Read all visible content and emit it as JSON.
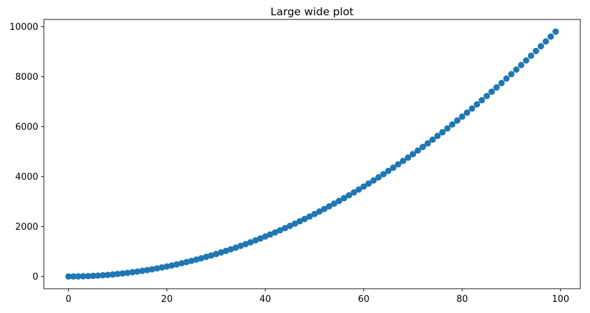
{
  "chart_data": {
    "type": "scatter",
    "title": "Large wide plot",
    "xlabel": "",
    "ylabel": "",
    "xlim": [
      -5,
      104
    ],
    "ylim": [
      -490,
      10290
    ],
    "x_ticks": [
      0,
      20,
      40,
      60,
      80,
      100
    ],
    "y_ticks": [
      0,
      2000,
      4000,
      6000,
      8000,
      10000
    ],
    "grid": false,
    "legend": "none",
    "marker_color": "#1f77b4",
    "x": [
      0,
      1,
      2,
      3,
      4,
      5,
      6,
      7,
      8,
      9,
      10,
      11,
      12,
      13,
      14,
      15,
      16,
      17,
      18,
      19,
      20,
      21,
      22,
      23,
      24,
      25,
      26,
      27,
      28,
      29,
      30,
      31,
      32,
      33,
      34,
      35,
      36,
      37,
      38,
      39,
      40,
      41,
      42,
      43,
      44,
      45,
      46,
      47,
      48,
      49,
      50,
      51,
      52,
      53,
      54,
      55,
      56,
      57,
      58,
      59,
      60,
      61,
      62,
      63,
      64,
      65,
      66,
      67,
      68,
      69,
      70,
      71,
      72,
      73,
      74,
      75,
      76,
      77,
      78,
      79,
      80,
      81,
      82,
      83,
      84,
      85,
      86,
      87,
      88,
      89,
      90,
      91,
      92,
      93,
      94,
      95,
      96,
      97,
      98,
      99
    ],
    "y": [
      0,
      1,
      4,
      9,
      16,
      25,
      36,
      49,
      64,
      81,
      100,
      121,
      144,
      169,
      196,
      225,
      256,
      289,
      324,
      361,
      400,
      441,
      484,
      529,
      576,
      625,
      676,
      729,
      784,
      841,
      900,
      961,
      1024,
      1089,
      1156,
      1225,
      1296,
      1369,
      1444,
      1521,
      1600,
      1681,
      1764,
      1849,
      1936,
      2025,
      2116,
      2209,
      2304,
      2401,
      2500,
      2601,
      2704,
      2809,
      2916,
      3025,
      3136,
      3249,
      3364,
      3481,
      3600,
      3721,
      3844,
      3969,
      4096,
      4225,
      4356,
      4489,
      4624,
      4761,
      4900,
      5041,
      5184,
      5329,
      5476,
      5625,
      5776,
      5929,
      6084,
      6241,
      6400,
      6561,
      6724,
      6889,
      7056,
      7225,
      7396,
      7569,
      7744,
      7921,
      8100,
      8281,
      8464,
      8649,
      8836,
      9025,
      9216,
      9409,
      9604,
      9801
    ]
  }
}
